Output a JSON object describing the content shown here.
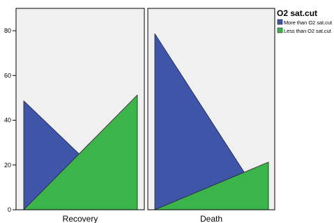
{
  "chart_data": {
    "type": "area",
    "title": "",
    "xlabel": "",
    "ylabel": "",
    "ylim": [
      0,
      90
    ],
    "yticks": [
      0,
      20,
      40,
      60,
      80
    ],
    "grid": false,
    "legend_position": "top-right",
    "legend_title": "O2 sat.cut",
    "stacked": true,
    "colors": {
      "more": "#3f56a8",
      "less": "#3bb44a",
      "panel": "#f0f0f0",
      "axis": "#000000"
    },
    "panels": [
      {
        "label": "Recovery",
        "series": [
          {
            "name": "More than O2 sat.cut",
            "start": 48.7,
            "end": 0
          },
          {
            "name": "Less than O2 sat.cut",
            "start": 0,
            "end": 51.3
          }
        ]
      },
      {
        "label": "Death",
        "series": [
          {
            "name": "More than O2 sat.cut",
            "start": 78.7,
            "end": 0
          },
          {
            "name": "Less than O2 sat.cut",
            "start": 0,
            "end": 21.3
          }
        ]
      }
    ],
    "legend": [
      {
        "label": "More than O2 sat.cut",
        "color": "#3f56a8"
      },
      {
        "label": "Less than O2 sat.cut",
        "color": "#3bb44a"
      }
    ]
  }
}
